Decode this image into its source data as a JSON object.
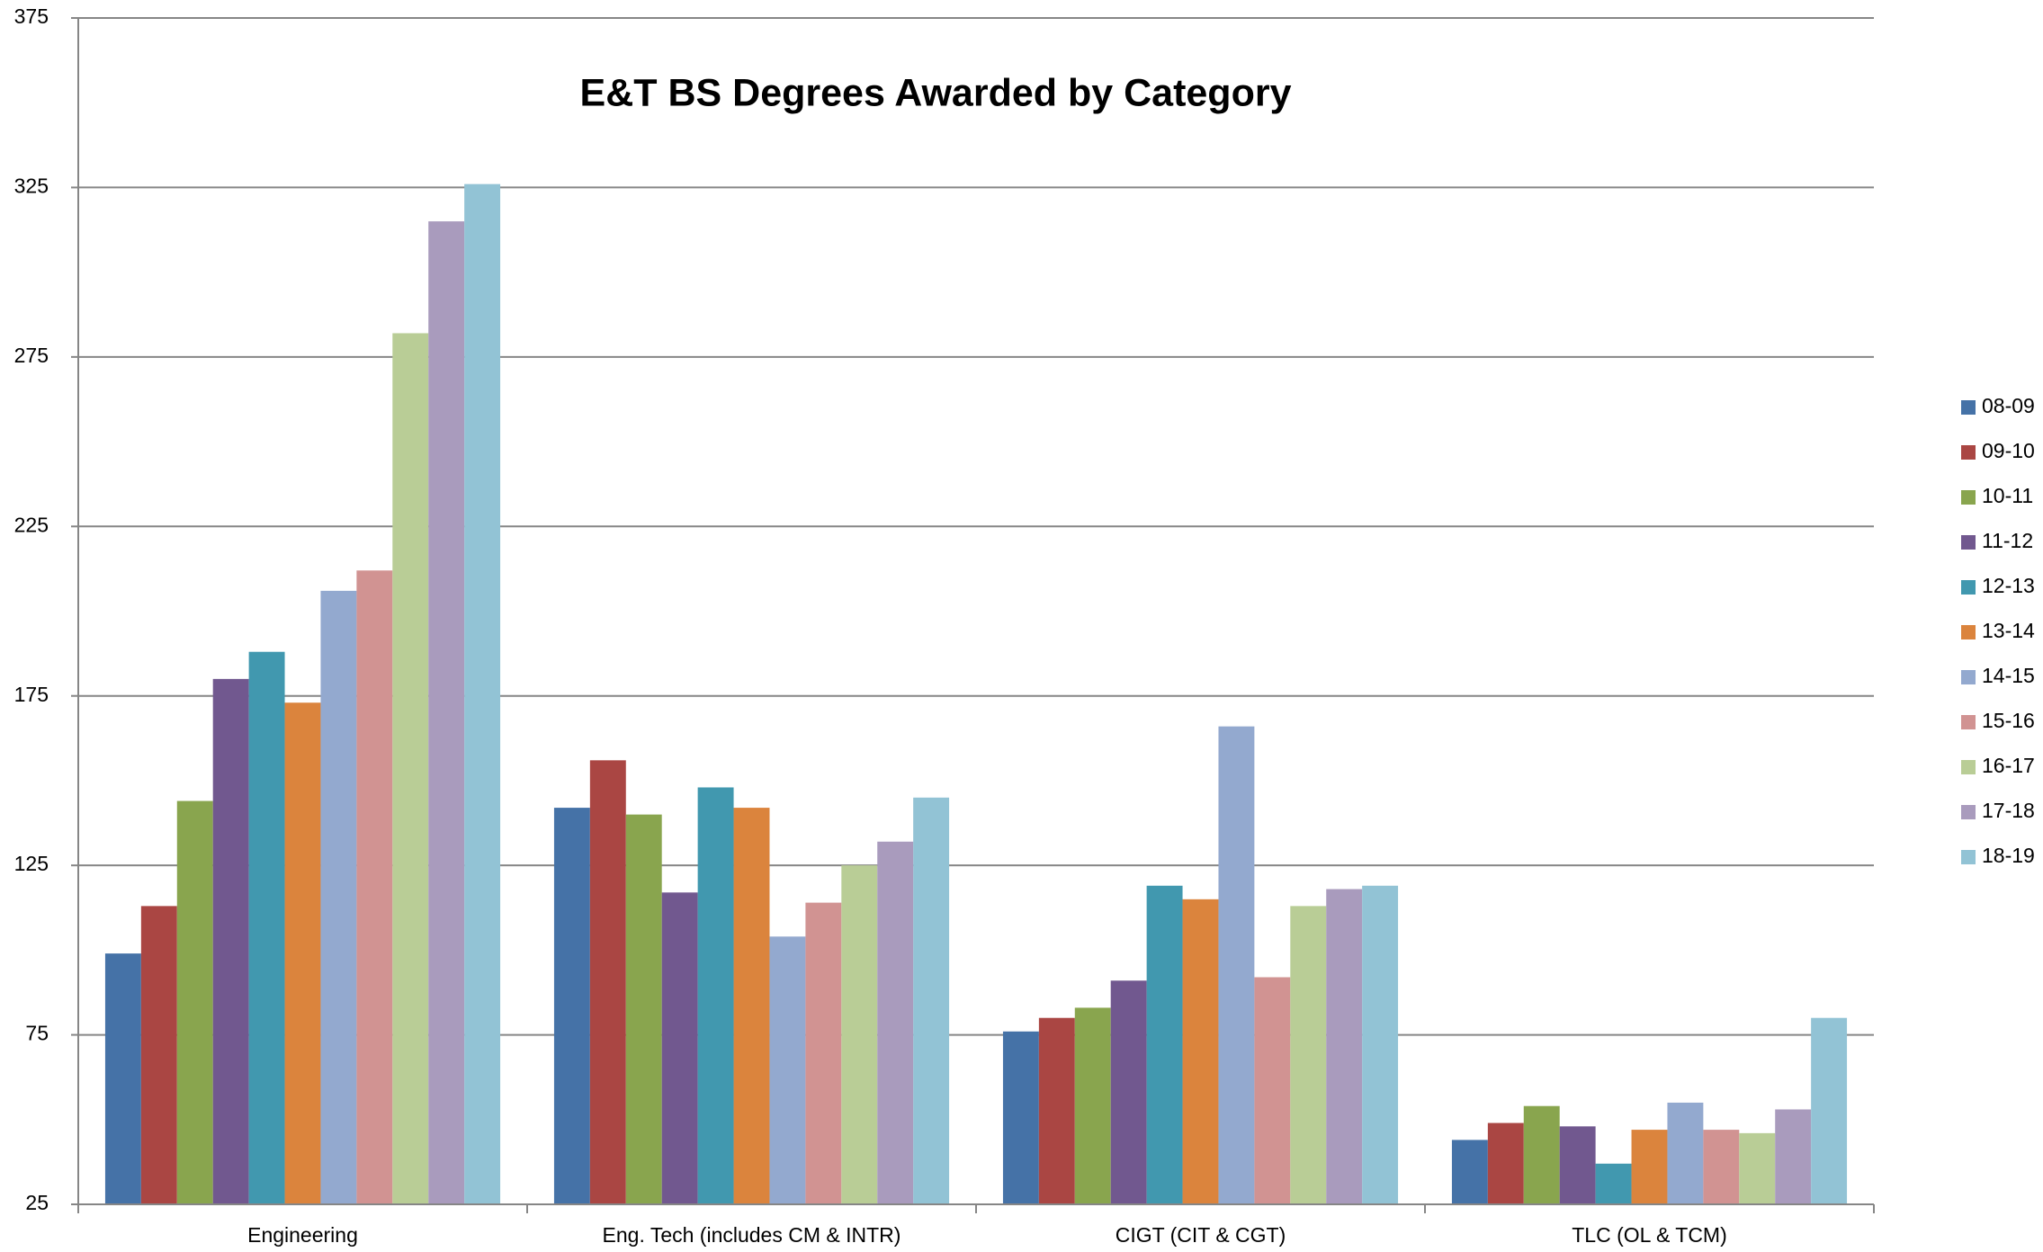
{
  "chart_data": {
    "type": "bar",
    "title": "E&T BS Degrees Awarded by Category",
    "categories": [
      "Engineering",
      "Eng. Tech (includes CM & INTR)",
      "CIGT (CIT & CGT)",
      "TLC (OL & TCM)"
    ],
    "series": [
      {
        "name": "08-09",
        "color": "#4572a7",
        "values": [
          99,
          142,
          76,
          44
        ]
      },
      {
        "name": "09-10",
        "color": "#aa4643",
        "values": [
          113,
          156,
          80,
          49
        ]
      },
      {
        "name": "10-11",
        "color": "#89a54e",
        "values": [
          144,
          140,
          83,
          54
        ]
      },
      {
        "name": "11-12",
        "color": "#71588f",
        "values": [
          180,
          117,
          91,
          48
        ]
      },
      {
        "name": "12-13",
        "color": "#4198af",
        "values": [
          188,
          148,
          119,
          37
        ]
      },
      {
        "name": "13-14",
        "color": "#db843d",
        "values": [
          173,
          142,
          115,
          47
        ]
      },
      {
        "name": "14-15",
        "color": "#93a9cf",
        "values": [
          206,
          104,
          166,
          55
        ]
      },
      {
        "name": "15-16",
        "color": "#d19392",
        "values": [
          212,
          114,
          92,
          47
        ]
      },
      {
        "name": "16-17",
        "color": "#b9cd96",
        "values": [
          282,
          125,
          113,
          46
        ]
      },
      {
        "name": "17-18",
        "color": "#a99bbd",
        "values": [
          315,
          132,
          118,
          53
        ]
      },
      {
        "name": "18-19",
        "color": "#92c3d5",
        "values": [
          326,
          145,
          119,
          80
        ]
      }
    ],
    "ylim": [
      25,
      375
    ],
    "yticks": [
      25,
      75,
      125,
      175,
      225,
      275,
      325,
      375
    ],
    "grid": true,
    "legend": "right"
  }
}
